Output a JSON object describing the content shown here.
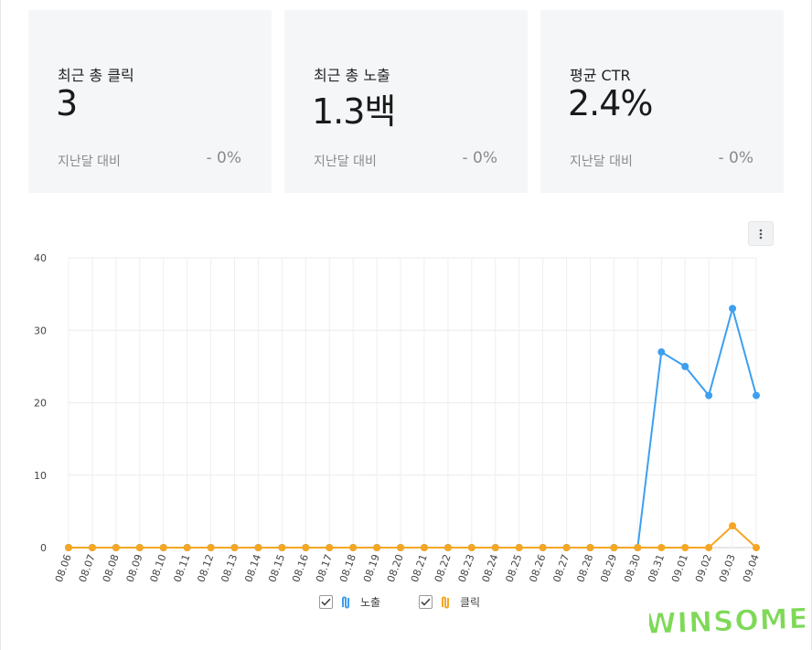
{
  "cards": [
    {
      "label": "최근 총 클릭",
      "value": "3",
      "compare_label": "지난달 대비",
      "delta": "- 0%"
    },
    {
      "label": "최근 총 노출",
      "value": "1.3백",
      "compare_label": "지난달 대비",
      "delta": "- 0%"
    },
    {
      "label": "평균 CTR",
      "value": "2.4%",
      "compare_label": "지난달 대비",
      "delta": "- 0%"
    }
  ],
  "menu": {
    "icon": "more-vertical-icon"
  },
  "chart_data": {
    "type": "line",
    "x": [
      "08.06",
      "08.07",
      "08.08",
      "08.09",
      "08.10",
      "08.11",
      "08.12",
      "08.13",
      "08.14",
      "08.15",
      "08.16",
      "08.17",
      "08.18",
      "08.19",
      "08.20",
      "08.21",
      "08.22",
      "08.23",
      "08.24",
      "08.25",
      "08.26",
      "08.27",
      "08.28",
      "08.29",
      "08.30",
      "08.31",
      "09.01",
      "09.02",
      "09.03",
      "09.04"
    ],
    "ylim": [
      0,
      40
    ],
    "yticks": [
      0,
      10,
      20,
      30,
      40
    ],
    "grid": true,
    "legend_position": "bottom-center",
    "series": [
      {
        "name": "노출",
        "color": "#3d9ff0",
        "values": [
          0,
          0,
          0,
          0,
          0,
          0,
          0,
          0,
          0,
          0,
          0,
          0,
          0,
          0,
          0,
          0,
          0,
          0,
          0,
          0,
          0,
          0,
          0,
          0,
          0,
          27,
          25,
          21,
          33,
          21
        ]
      },
      {
        "name": "클릭",
        "color": "#f5a623",
        "values": [
          0,
          0,
          0,
          0,
          0,
          0,
          0,
          0,
          0,
          0,
          0,
          0,
          0,
          0,
          0,
          0,
          0,
          0,
          0,
          0,
          0,
          0,
          0,
          0,
          0,
          0,
          0,
          0,
          3,
          0
        ]
      }
    ]
  },
  "watermark": {
    "text": "WINSOME",
    "color": "#7ed957"
  }
}
